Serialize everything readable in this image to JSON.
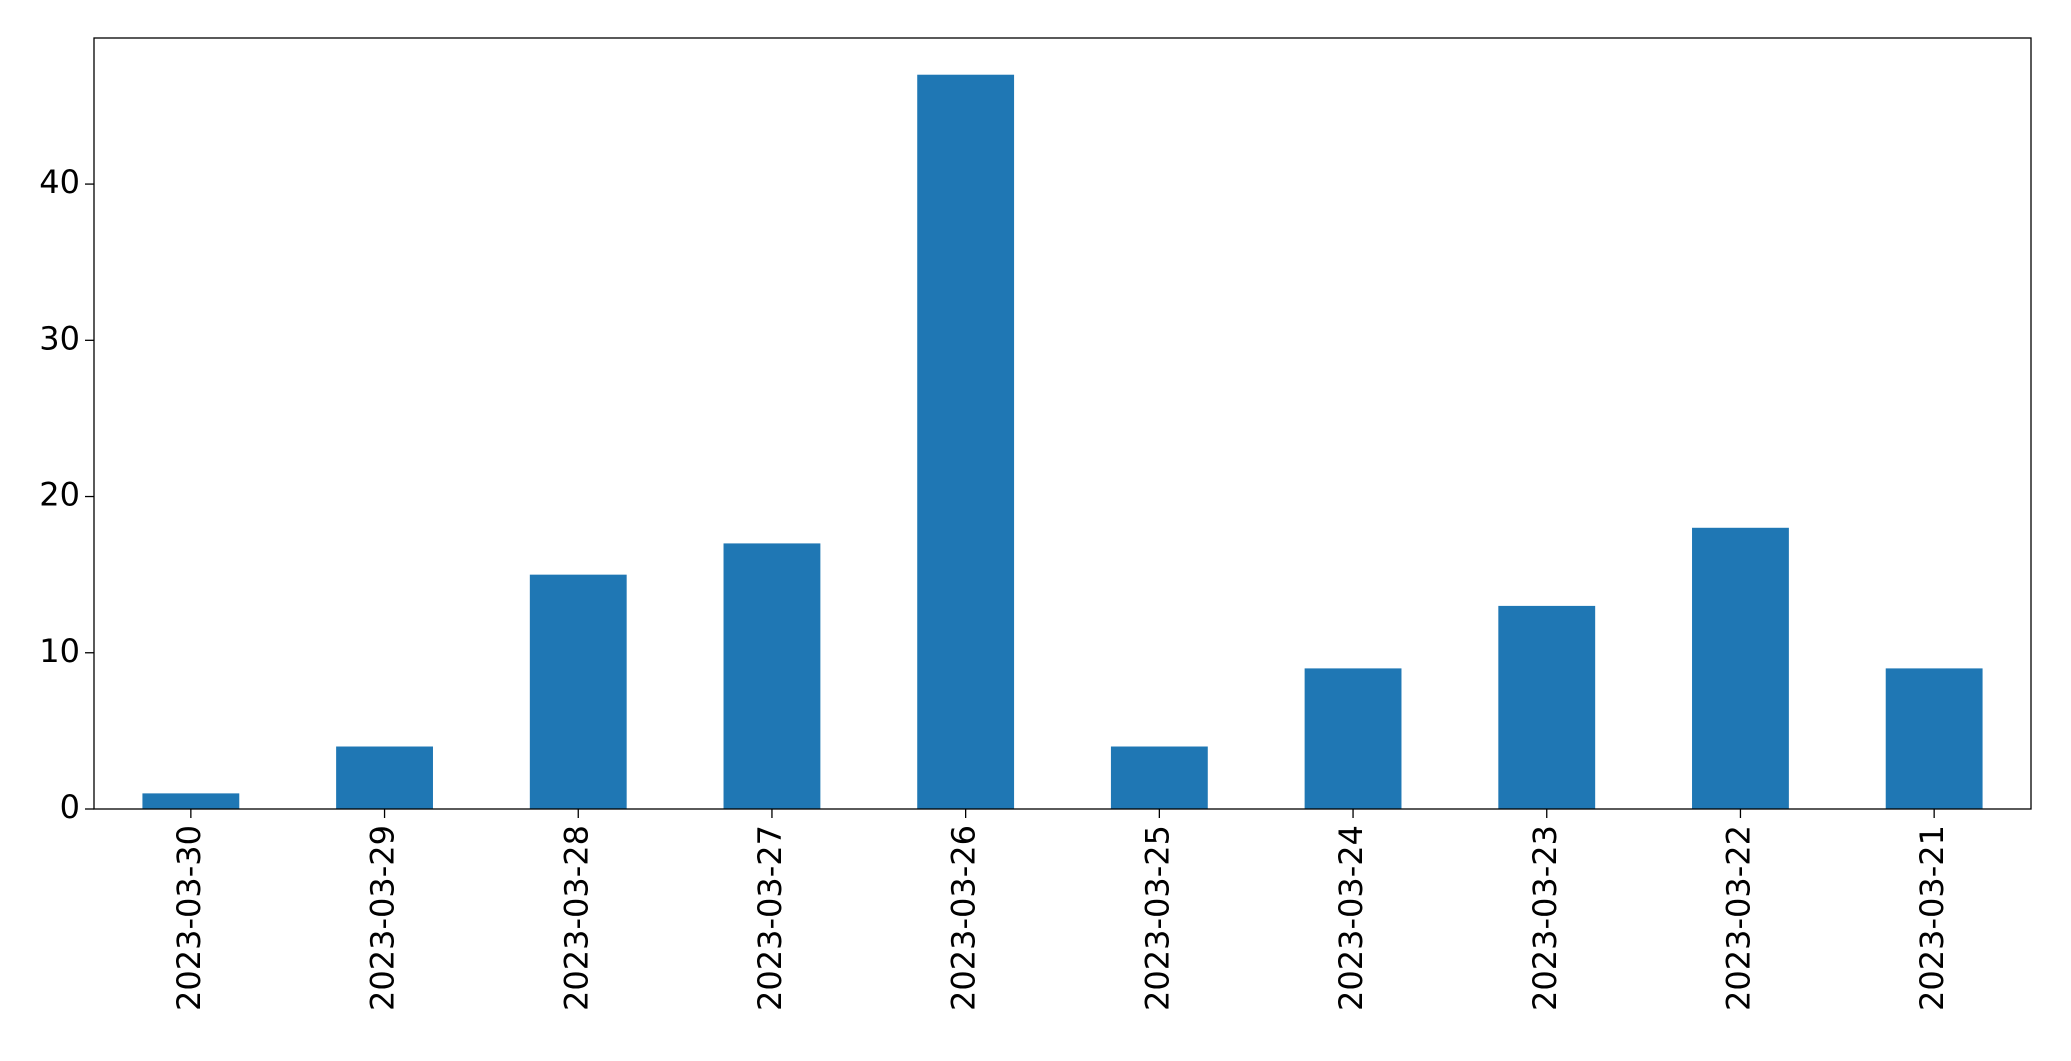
{
  "chart_data": {
    "type": "bar",
    "categories": [
      "2023-03-30",
      "2023-03-29",
      "2023-03-28",
      "2023-03-27",
      "2023-03-26",
      "2023-03-25",
      "2023-03-24",
      "2023-03-23",
      "2023-03-22",
      "2023-03-21"
    ],
    "values": [
      1,
      4,
      15,
      17,
      47,
      4,
      9,
      13,
      18,
      9
    ],
    "color": "#1f77b4",
    "ylim": [
      0,
      49.35
    ],
    "yticks": [
      0,
      10,
      20,
      30,
      40
    ],
    "grid": false
  }
}
